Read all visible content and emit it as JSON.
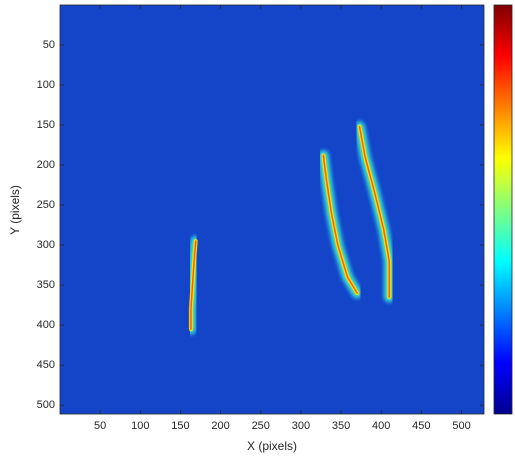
{
  "chart_data": {
    "type": "image",
    "xlabel": "X (pixels)",
    "ylabel": "Y (pixels)",
    "colormap": "jet",
    "background": "#1444c8",
    "colorbar": true,
    "y_reversed": true,
    "xlim": [
      0,
      528
    ],
    "ylim": [
      0,
      511
    ],
    "xticks": [
      50,
      100,
      150,
      200,
      250,
      300,
      350,
      400,
      450,
      500
    ],
    "yticks": [
      50,
      100,
      150,
      200,
      250,
      300,
      350,
      400,
      450,
      500
    ],
    "streaks": [
      {
        "x": [
          169,
          167,
          165,
          163,
          163
        ],
        "y": [
          295,
          320,
          350,
          380,
          405
        ]
      },
      {
        "x": [
          328,
          332,
          338,
          346,
          358,
          370
        ],
        "y": [
          188,
          220,
          260,
          300,
          340,
          360
        ]
      },
      {
        "x": [
          373,
          380,
          392,
          403,
          410,
          410
        ],
        "y": [
          152,
          190,
          235,
          280,
          320,
          365
        ]
      }
    ]
  }
}
